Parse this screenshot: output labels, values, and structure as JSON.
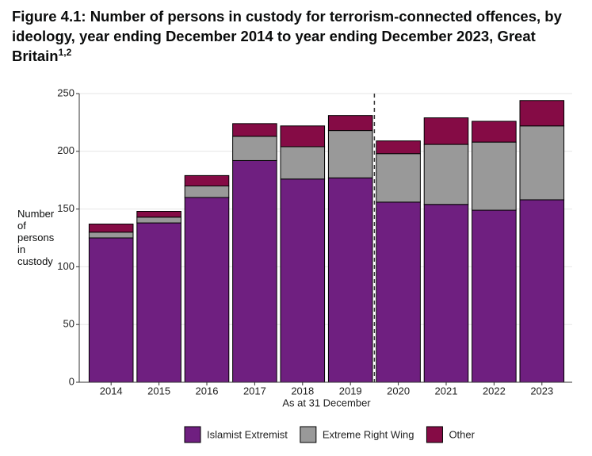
{
  "chart_data": {
    "type": "stacked_bar",
    "title": "Figure 4.1: Number of persons in custody for terrorism-connected offences, by ideology, year ending December 2014 to year ending December 2023, Great Britain",
    "title_note_refs": "1,2",
    "y_label": "Number of persons in custody",
    "x_label": "As at 31 December",
    "categories": [
      "2014",
      "2015",
      "2016",
      "2017",
      "2018",
      "2019",
      "2020",
      "2021",
      "2022",
      "2023"
    ],
    "series": [
      {
        "name": "Islamist Extremist",
        "color": "#6f1f80",
        "values": [
          125,
          138,
          160,
          192,
          176,
          177,
          156,
          154,
          149,
          158
        ]
      },
      {
        "name": "Extreme Right Wing",
        "color": "#999999",
        "values": [
          5,
          5,
          10,
          21,
          28,
          41,
          42,
          52,
          59,
          64
        ]
      },
      {
        "name": "Other",
        "color": "#850b45",
        "values": [
          7,
          5,
          9,
          11,
          18,
          13,
          11,
          23,
          18,
          22
        ]
      }
    ],
    "ylim": [
      0,
      250
    ],
    "yticks": [
      0,
      50,
      100,
      150,
      200,
      250
    ],
    "grid": true
  }
}
